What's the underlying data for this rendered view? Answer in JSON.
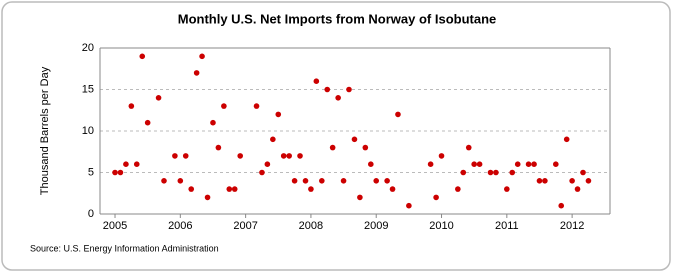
{
  "chart_data": {
    "type": "scatter",
    "title": "Monthly U.S. Net Imports from Norway of Isobutane",
    "y_label": "Thousand Barrels per Day",
    "source": "Source: U.S. Energy Information Administration",
    "color": "#cc0000",
    "x": [
      2005,
      2005.083,
      2005.167,
      2005.25,
      2005.333,
      2005.417,
      2005.5,
      2005.667,
      2005.75,
      2005.917,
      2006,
      2006.083,
      2006.167,
      2006.25,
      2006.333,
      2006.417,
      2006.5,
      2006.583,
      2006.667,
      2006.75,
      2006.833,
      2006.917,
      2007.167,
      2007.25,
      2007.333,
      2007.417,
      2007.5,
      2007.583,
      2007.667,
      2007.75,
      2007.833,
      2007.917,
      2008,
      2008.083,
      2008.167,
      2008.25,
      2008.333,
      2008.417,
      2008.5,
      2008.583,
      2008.667,
      2008.75,
      2008.833,
      2008.917,
      2009,
      2009.167,
      2009.25,
      2009.333,
      2009.5,
      2009.833,
      2009.917,
      2010,
      2010.25,
      2010.333,
      2010.417,
      2010.5,
      2010.583,
      2010.75,
      2010.833,
      2011,
      2011.083,
      2011.167,
      2011.333,
      2011.417,
      2011.5,
      2011.583,
      2011.75,
      2011.833,
      2011.917,
      2012,
      2012.083,
      2012.167,
      2012.25
    ],
    "values": [
      5,
      5,
      6,
      13,
      6,
      19,
      11,
      14,
      4,
      7,
      4,
      7,
      3,
      17,
      19,
      2,
      11,
      8,
      13,
      3,
      3,
      7,
      13,
      5,
      6,
      9,
      12,
      7,
      7,
      4,
      7,
      4,
      3,
      16,
      4,
      15,
      8,
      14,
      4,
      15,
      9,
      2,
      8,
      6,
      4,
      4,
      3,
      12,
      1,
      6,
      2,
      7,
      3,
      5,
      8,
      6,
      6,
      5,
      5,
      3,
      5,
      6,
      6,
      6,
      4,
      4,
      6,
      1,
      9,
      4,
      3,
      5,
      4
    ],
    "xlim": [
      2004.77,
      2012.58
    ],
    "xticks": [
      2005,
      2006,
      2007,
      2008,
      2009,
      2010,
      2011,
      2012
    ],
    "ylim": [
      0,
      20
    ],
    "yticks": [
      0,
      5,
      10,
      15,
      20
    ],
    "grid": true
  }
}
